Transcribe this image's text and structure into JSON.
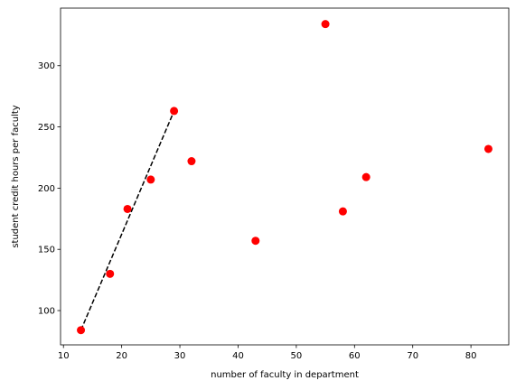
{
  "chart_data": {
    "type": "scatter",
    "xlabel": "number of faculty in department",
    "ylabel": "student credit hours per faculty",
    "xlim": [
      9.5,
      86.5
    ],
    "ylim": [
      72,
      347
    ],
    "x_ticks": [
      10,
      20,
      30,
      40,
      50,
      60,
      70,
      80
    ],
    "y_ticks": [
      100,
      150,
      200,
      250,
      300
    ],
    "grid": false,
    "series": [
      {
        "kind": "points",
        "color": "#ff0000",
        "points": [
          {
            "x": 13,
            "y": 84
          },
          {
            "x": 18,
            "y": 130
          },
          {
            "x": 21,
            "y": 183
          },
          {
            "x": 25,
            "y": 207
          },
          {
            "x": 29,
            "y": 263
          },
          {
            "x": 32,
            "y": 222
          },
          {
            "x": 43,
            "y": 157
          },
          {
            "x": 55,
            "y": 334
          },
          {
            "x": 58,
            "y": 181
          },
          {
            "x": 62,
            "y": 209
          },
          {
            "x": 83,
            "y": 232
          }
        ]
      },
      {
        "kind": "line",
        "style": "dashed",
        "color": "#000000",
        "points": [
          {
            "x": 13,
            "y": 84
          },
          {
            "x": 29,
            "y": 263
          }
        ]
      }
    ]
  }
}
